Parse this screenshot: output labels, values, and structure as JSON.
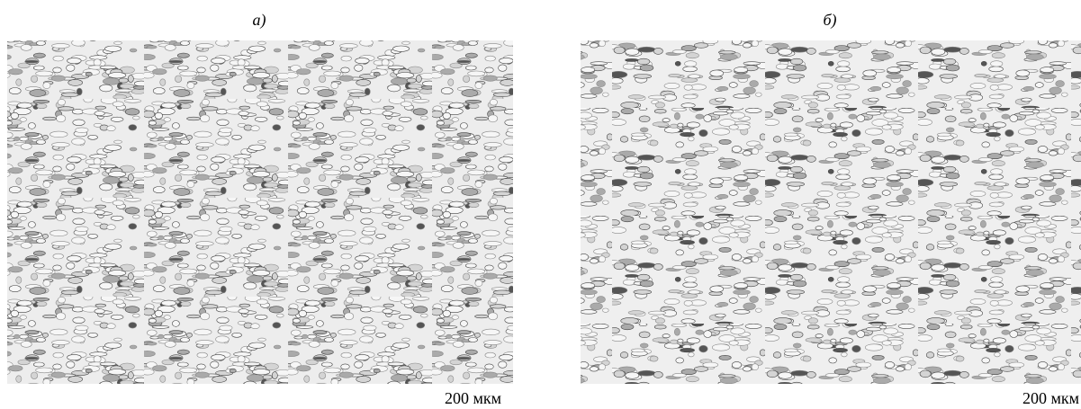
{
  "panels": [
    {
      "label": "а)",
      "scale_bar": "200 мкм"
    },
    {
      "label": "б)",
      "scale_bar": "200 мкм"
    }
  ]
}
